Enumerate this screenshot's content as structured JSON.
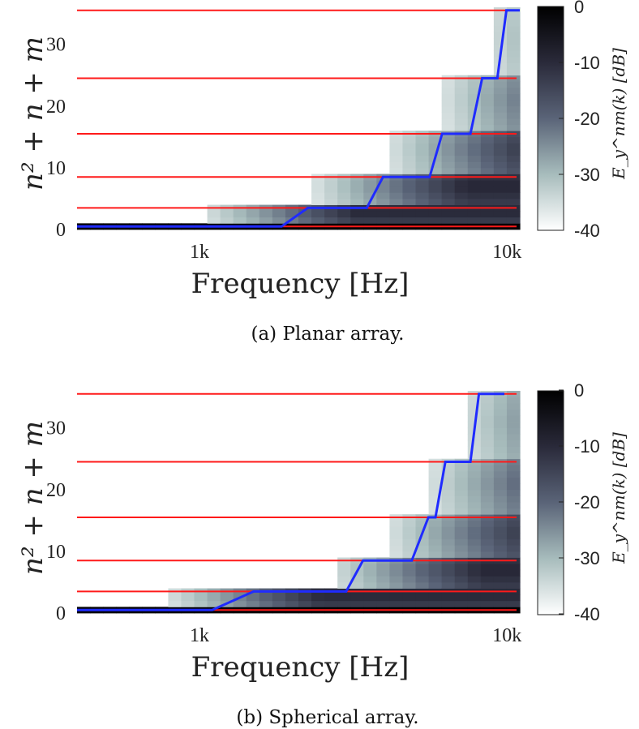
{
  "colors": {
    "red": "#ff1a1a",
    "blue": "#1f2bff",
    "dark": "#0a0a0a"
  },
  "chart_data": [
    {
      "type": "heatmap",
      "caption": "(a) Planar array.",
      "xlabel": "Frequency [Hz]",
      "ylabel": "n² + n + m",
      "xscale": "log",
      "xlim": [
        400,
        11000
      ],
      "ylim": [
        0,
        36
      ],
      "x_ticks": [
        {
          "value": 1000,
          "label": "1k"
        },
        {
          "value": 10000,
          "label": "10k"
        }
      ],
      "y_ticks": [
        {
          "value": 0,
          "label": "0"
        },
        {
          "value": 10,
          "label": "10"
        },
        {
          "value": 20,
          "label": "20"
        },
        {
          "value": 30,
          "label": "30"
        }
      ],
      "red_lines": [
        0,
        3,
        8,
        15,
        24,
        35
      ],
      "blue_line": [
        [
          400,
          0
        ],
        [
          1850,
          0
        ],
        [
          2250,
          3
        ],
        [
          3500,
          3
        ],
        [
          3950,
          8
        ],
        [
          5600,
          8
        ],
        [
          6150,
          15
        ],
        [
          7600,
          15
        ],
        [
          8300,
          24
        ],
        [
          9300,
          24
        ],
        [
          9950,
          35
        ],
        [
          11000,
          35
        ]
      ],
      "colorbar": {
        "label": "E_y^nm(k) [dB]",
        "ticks": [
          "0",
          "-10",
          "-20",
          "-30",
          "-40"
        ],
        "range": [
          -40,
          0
        ]
      },
      "onsets": [
        {
          "order": 1,
          "start_freq": 1050
        },
        {
          "order": 2,
          "start_freq": 2400
        },
        {
          "order": 3,
          "start_freq": 4200
        },
        {
          "order": 4,
          "start_freq": 6300
        },
        {
          "order": 5,
          "start_freq": 8800
        }
      ]
    },
    {
      "type": "heatmap",
      "caption": "(b) Spherical array.",
      "xlabel": "Frequency [Hz]",
      "ylabel": "n² + n + m",
      "xscale": "log",
      "xlim": [
        400,
        11000
      ],
      "ylim": [
        0,
        36
      ],
      "x_ticks": [
        {
          "value": 1000,
          "label": "1k"
        },
        {
          "value": 10000,
          "label": "10k"
        }
      ],
      "y_ticks": [
        {
          "value": 0,
          "label": "0"
        },
        {
          "value": 10,
          "label": "10"
        },
        {
          "value": 20,
          "label": "20"
        },
        {
          "value": 30,
          "label": "30"
        }
      ],
      "red_lines": [
        0,
        3,
        8,
        15,
        24,
        35
      ],
      "blue_line": [
        [
          400,
          0
        ],
        [
          1100,
          0
        ],
        [
          1500,
          3
        ],
        [
          3000,
          3
        ],
        [
          3400,
          8
        ],
        [
          4900,
          8
        ],
        [
          5550,
          15
        ],
        [
          5850,
          15
        ],
        [
          6300,
          24
        ],
        [
          7600,
          24
        ],
        [
          8100,
          35
        ],
        [
          9800,
          35
        ]
      ],
      "colorbar": {
        "label": "E_y^nm(k) [dB]",
        "ticks": [
          "0",
          "-10",
          "-20",
          "-30",
          "-40"
        ],
        "range": [
          -40,
          0
        ]
      },
      "onsets": [
        {
          "order": 1,
          "start_freq": 800
        },
        {
          "order": 2,
          "start_freq": 2700
        },
        {
          "order": 3,
          "start_freq": 4200
        },
        {
          "order": 4,
          "start_freq": 5700
        },
        {
          "order": 5,
          "start_freq": 7300
        }
      ]
    }
  ]
}
